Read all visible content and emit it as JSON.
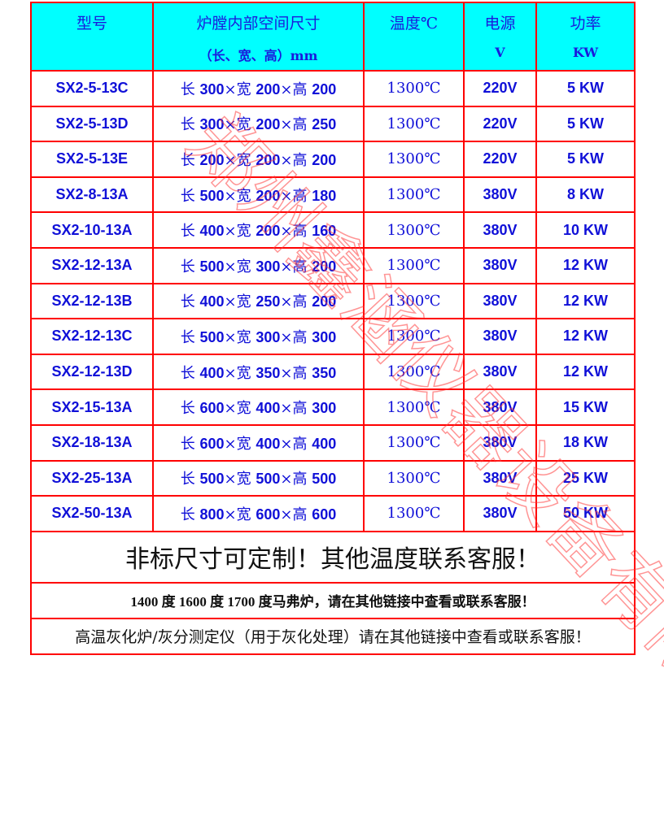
{
  "header": {
    "model": "型号",
    "size_line1": "炉膛内部空间尺寸",
    "size_line2": "（长、宽、高）mm",
    "temp": "温度℃",
    "power_line1": "电源",
    "power_line2": "V",
    "watt_line1": "功率",
    "watt_line2": "KW"
  },
  "rows": [
    {
      "model": "SX2-5-13C",
      "l": "300",
      "w": "200",
      "h": "200",
      "temp": "1300℃",
      "volt": "220V",
      "kw": "5 KW"
    },
    {
      "model": "SX2-5-13D",
      "l": "300",
      "w": "200",
      "h": "250",
      "temp": "1300℃",
      "volt": "220V",
      "kw": "5 KW"
    },
    {
      "model": "SX2-5-13E",
      "l": "200",
      "w": "200",
      "h": "200",
      "temp": "1300℃",
      "volt": "220V",
      "kw": "5 KW"
    },
    {
      "model": "SX2-8-13A",
      "l": "500",
      "w": "200",
      "h": "180",
      "temp": "1300℃",
      "volt": "380V",
      "kw": "8 KW"
    },
    {
      "model": "SX2-10-13A",
      "l": "400",
      "w": "200",
      "h": "160",
      "temp": "1300℃",
      "volt": "380V",
      "kw": "10 KW"
    },
    {
      "model": "SX2-12-13A",
      "l": "500",
      "w": "300",
      "h": "200",
      "temp": "1300℃",
      "volt": "380V",
      "kw": "12 KW"
    },
    {
      "model": "SX2-12-13B",
      "l": "400",
      "w": "250",
      "h": "200",
      "temp": "1300℃",
      "volt": "380V",
      "kw": "12 KW"
    },
    {
      "model": "SX2-12-13C",
      "l": "500",
      "w": "300",
      "h": "300",
      "temp": "1300℃",
      "volt": "380V",
      "kw": "12 KW"
    },
    {
      "model": "SX2-12-13D",
      "l": "400",
      "w": "350",
      "h": "350",
      "temp": "1300℃",
      "volt": "380V",
      "kw": "12 KW"
    },
    {
      "model": "SX2-15-13A",
      "l": "600",
      "w": "400",
      "h": "300",
      "temp": "1300℃",
      "volt": "380V",
      "kw": "15 KW"
    },
    {
      "model": "SX2-18-13A",
      "l": "600",
      "w": "400",
      "h": "400",
      "temp": "1300℃",
      "volt": "380V",
      "kw": "18 KW"
    },
    {
      "model": "SX2-25-13A",
      "l": "500",
      "w": "500",
      "h": "500",
      "temp": "1300℃",
      "volt": "380V",
      "kw": "25 KW"
    },
    {
      "model": "SX2-50-13A",
      "l": "800",
      "w": "600",
      "h": "600",
      "temp": "1300℃",
      "volt": "380V",
      "kw": "50 KW"
    }
  ],
  "labels": {
    "len": "长 ",
    "wid": "×宽 ",
    "hei": "×高 "
  },
  "notes": {
    "custom": "非标尺寸可定制！其他温度联系客服！",
    "other_temps": "1400 度 1600 度 1700 度马弗炉，请在其他链接中查看或联系客服！",
    "ashing": "高温灰化炉/灰分测定仪（用于灰化处理）请在其他链接中查看或联系客服！"
  },
  "watermark": "郑州鑫涵仪器设备有限公司",
  "colors": {
    "border": "#ff0000",
    "header_bg": "#00ffff",
    "text": "#1010d8"
  }
}
